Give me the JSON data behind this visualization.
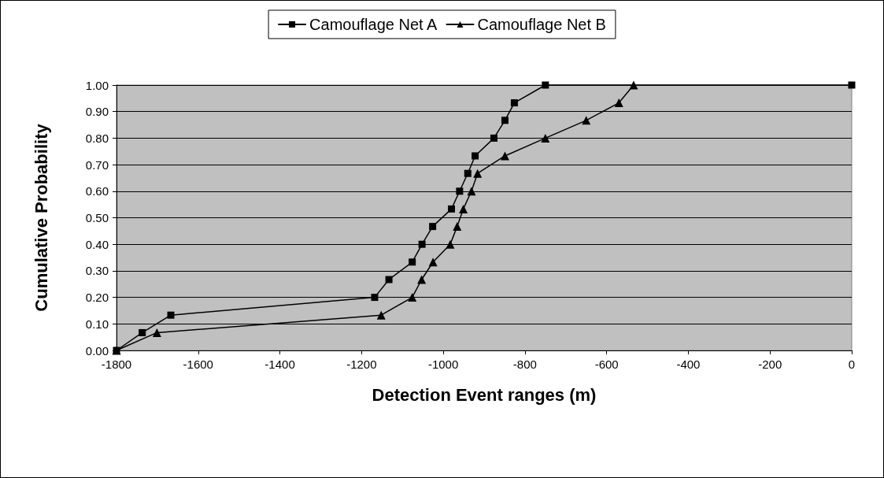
{
  "chart_data": {
    "type": "line",
    "xlabel": "Detection Event ranges (m)",
    "ylabel": "Cumulative Probability",
    "series": [
      {
        "name": "Camouflage Net A",
        "color": "#000000",
        "marker": "square",
        "x": [
          -1800,
          -1737,
          -1667,
          -1168,
          -1133,
          -1076,
          -1052,
          -1026,
          -980,
          -960,
          -940,
          -922,
          -876,
          -849,
          -826,
          -750,
          0
        ],
        "values": [
          0,
          0.067,
          0.133,
          0.2,
          0.267,
          0.333,
          0.4,
          0.467,
          0.533,
          0.6,
          0.667,
          0.733,
          0.8,
          0.867,
          0.933,
          1.0,
          1.0
        ]
      },
      {
        "name": "Camouflage Net B",
        "color": "#000000",
        "marker": "triangle",
        "x": [
          -1800,
          -1701,
          -1152,
          -1076,
          -1053,
          -1025,
          -983,
          -966,
          -951,
          -931,
          -916,
          -849,
          -750,
          -650,
          -570,
          -534
        ],
        "values": [
          0,
          0.067,
          0.133,
          0.2,
          0.267,
          0.333,
          0.4,
          0.467,
          0.533,
          0.6,
          0.667,
          0.733,
          0.8,
          0.867,
          0.933,
          1.0
        ]
      }
    ],
    "xlim": [
      -1800,
      0
    ],
    "xticks": [
      -1800,
      -1600,
      -1400,
      -1200,
      -1000,
      -800,
      -600,
      -400,
      -200,
      0
    ],
    "ylim": [
      0,
      1
    ],
    "yticks": [
      {
        "value": 0,
        "label": "0.00"
      },
      {
        "value": 0.1,
        "label": "0.10"
      },
      {
        "value": 0.2,
        "label": "0.20"
      },
      {
        "value": 0.3,
        "label": "0.30"
      },
      {
        "value": 0.4,
        "label": "0.40"
      },
      {
        "value": 0.5,
        "label": "0.50"
      },
      {
        "value": 0.6,
        "label": "0.60"
      },
      {
        "value": 0.7,
        "label": "0.70"
      },
      {
        "value": 0.8,
        "label": "0.80"
      },
      {
        "value": 0.9,
        "label": "0.90"
      },
      {
        "value": 1,
        "label": "1.00"
      }
    ],
    "grid": "y",
    "legend": "top",
    "line_style": "solid"
  }
}
